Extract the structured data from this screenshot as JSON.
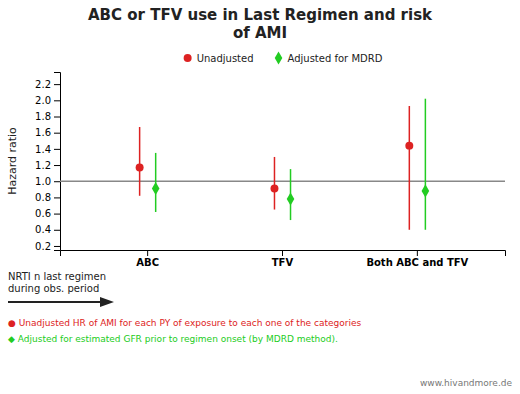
{
  "chart_data": {
    "type": "errorbar",
    "title": "ABC or TFV use in Last Regimen and risk\nof AMI",
    "ylabel": "Hazard ratio",
    "note": "NRTI n last regimen\nduring obs. period",
    "footnotes": [
      "● Unadjusted HR of AMI for each PY of exposure to each one of the categories",
      "◆ Adjusted for estimated GFR prior to regimen onset (by MDRD method)."
    ],
    "watermark": "www.hivandmore.de",
    "categories": [
      "ABC",
      "TFV",
      "Both ABC and TFV"
    ],
    "series": [
      {
        "name": "Unadjusted",
        "color": "#dd2222",
        "marker": "circle",
        "values": [
          1.17,
          0.91,
          1.44
        ],
        "ci_low": [
          0.82,
          0.65,
          0.4
        ],
        "ci_high": [
          1.67,
          1.3,
          1.93
        ]
      },
      {
        "name": "Adjusted for MDRD",
        "color": "#22cc22",
        "marker": "diamond",
        "values": [
          0.91,
          0.78,
          0.88
        ],
        "ci_low": [
          0.62,
          0.52,
          0.4
        ],
        "ci_high": [
          1.35,
          1.15,
          2.02
        ]
      }
    ],
    "hline": 1.0,
    "ylim": [
      0.15,
      2.35
    ],
    "yticks": [
      0.2,
      0.4,
      0.6,
      0.8,
      {
        "value": 1.0,
        "label": "1.0"
      },
      1.2,
      1.4,
      1.6,
      1.8,
      {
        "value": 2.0,
        "label": "2.0"
      },
      2.2
    ],
    "grid": false,
    "legend": "top"
  }
}
